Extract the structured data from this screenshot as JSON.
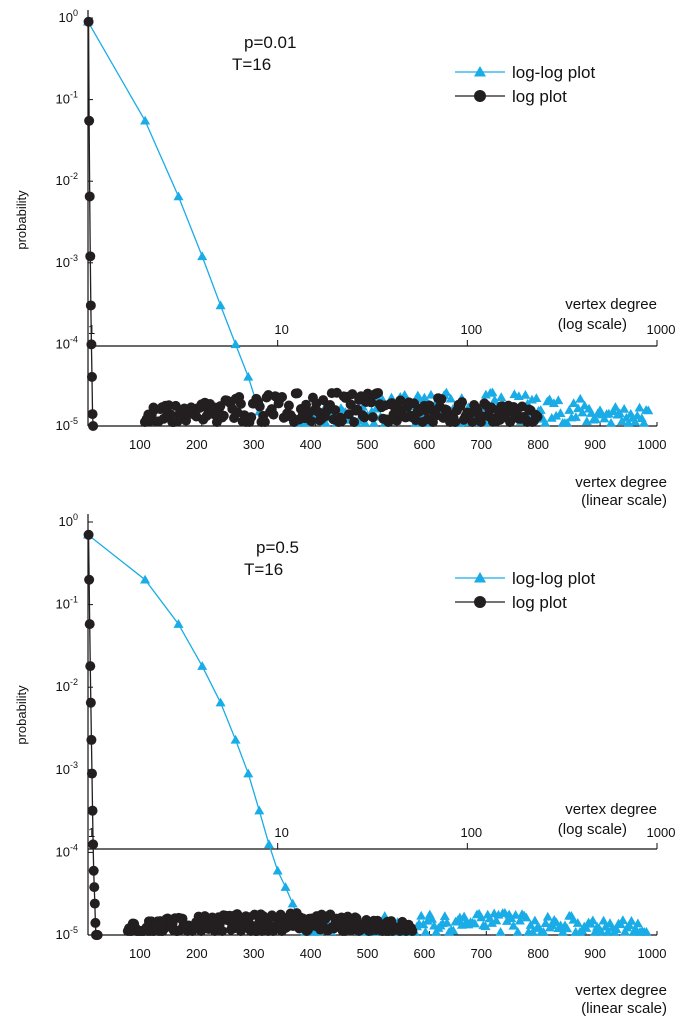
{
  "colors": {
    "loglog": "#1AACE6",
    "log": "#231F20",
    "axis": "#111111"
  },
  "chart_data": [
    {
      "type": "scatter",
      "annotation": [
        "p=0.01",
        "T=16"
      ],
      "ylabel": "probability",
      "xlabel_bottom": [
        "vertex degree",
        "(linear scale)"
      ],
      "xlabel_top": [
        "vertex degree",
        "(log scale)"
      ],
      "yscale": "log",
      "ylim": [
        1e-05,
        1
      ],
      "y_ticks": [
        {
          "b": "10",
          "e": "0"
        },
        {
          "b": "10",
          "e": "-1"
        },
        {
          "b": "10",
          "e": "-2"
        },
        {
          "b": "10",
          "e": "-3"
        },
        {
          "b": "10",
          "e": "-4"
        },
        {
          "b": "10",
          "e": "-5"
        }
      ],
      "x_linear_ticks": [
        "100",
        "200",
        "300",
        "400",
        "500",
        "600",
        "700",
        "800",
        "900",
        "1000"
      ],
      "x_linear_range": [
        0,
        1000
      ],
      "x_log_ticks": [
        "1",
        "10",
        "100",
        "1000"
      ],
      "x_log_range": [
        1,
        1000
      ],
      "legend": [
        "log-log  plot",
        "log plot"
      ],
      "legend_position": "top-right",
      "series": [
        {
          "name": "log-log  plot",
          "marker": "triangle",
          "axis": "log",
          "line": {
            "x": [
              1,
              2,
              3,
              4,
              5,
              6,
              7,
              8
            ],
            "y": [
              0.9,
              0.055,
              0.0065,
              0.0012,
              0.0003,
              0.0001,
              4e-05,
              1.5e-05
            ]
          },
          "tail": {
            "x_range": [
              13,
              900
            ],
            "y_range": [
              1e-05,
              2.6e-05
            ]
          }
        },
        {
          "name": "log plot",
          "marker": "circle",
          "axis": "linear",
          "line": {
            "x": [
              1,
              2,
              3,
              4,
              5,
              6,
              7,
              8,
              9
            ],
            "y": [
              0.9,
              0.055,
              0.0065,
              0.0012,
              0.0003,
              0.0001,
              4e-05,
              1.4e-05,
              1e-05
            ]
          },
          "tail": {
            "x_range": [
              100,
              790
            ],
            "y_range": [
              1e-05,
              2.6e-05
            ]
          }
        }
      ]
    },
    {
      "type": "scatter",
      "annotation": [
        "p=0.5",
        "T=16"
      ],
      "ylabel": "probability",
      "xlabel_bottom": [
        "vertex degree",
        "(linear scale)"
      ],
      "xlabel_top": [
        "vertex degree",
        "(log scale)"
      ],
      "yscale": "log",
      "ylim": [
        1e-05,
        1
      ],
      "y_ticks": [
        {
          "b": "10",
          "e": "0"
        },
        {
          "b": "10",
          "e": "-1"
        },
        {
          "b": "10",
          "e": "-2"
        },
        {
          "b": "10",
          "e": "-3"
        },
        {
          "b": "10",
          "e": "-4"
        },
        {
          "b": "10",
          "e": "-5"
        }
      ],
      "x_linear_ticks": [
        "100",
        "200",
        "300",
        "400",
        "500",
        "600",
        "700",
        "800",
        "900",
        "1000"
      ],
      "x_linear_range": [
        0,
        1000
      ],
      "x_log_ticks": [
        "1",
        "10",
        "100",
        "1000"
      ],
      "x_log_range": [
        1,
        1000
      ],
      "legend": [
        "log-log  plot",
        "log plot"
      ],
      "legend_position": "top-right",
      "series": [
        {
          "name": "log-log  plot",
          "marker": "triangle",
          "axis": "log",
          "line": {
            "x": [
              1,
              2,
              3,
              4,
              5,
              6,
              7,
              8,
              9,
              10,
              11,
              12,
              13
            ],
            "y": [
              0.7,
              0.2,
              0.058,
              0.018,
              0.0065,
              0.0023,
              0.0009,
              0.00032,
              0.000125,
              6e-05,
              3.8e-05,
              2.4e-05,
              1.4e-05
            ]
          },
          "tail": {
            "x_range": [
              14,
              880
            ],
            "y_range": [
              1e-05,
              1.9e-05
            ]
          }
        },
        {
          "name": "log plot",
          "marker": "circle",
          "axis": "linear",
          "line": {
            "x": [
              1,
              2,
              3,
              4,
              5,
              6,
              7,
              8,
              9,
              10,
              11,
              12,
              13,
              14,
              15,
              16,
              17
            ],
            "y": [
              0.7,
              0.2,
              0.058,
              0.018,
              0.0065,
              0.0023,
              0.0009,
              0.00032,
              0.000125,
              6e-05,
              3.8e-05,
              2.4e-05,
              1.4e-05,
              1e-05,
              1e-05,
              1e-05,
              1e-05
            ]
          },
          "tail": {
            "x_range": [
              70,
              570
            ],
            "y_range": [
              1e-05,
              1.9e-05
            ]
          }
        }
      ]
    }
  ]
}
